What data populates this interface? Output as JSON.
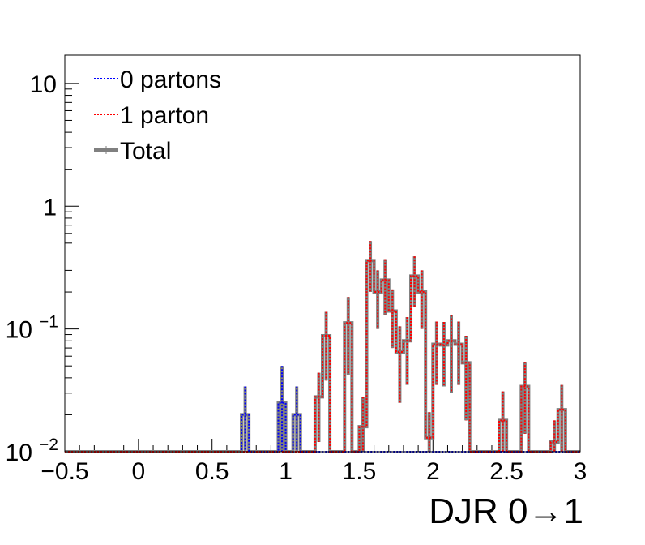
{
  "chart_data": {
    "type": "step-histogram",
    "xlabel": "DJR 0→1",
    "ylabel": "",
    "xlim": [
      -0.5,
      3.0
    ],
    "ylim": [
      0.01,
      17
    ],
    "yscale": "log",
    "bin_width": 0.05,
    "x_ticks": [
      {
        "value": -0.5,
        "label": "−0.5"
      },
      {
        "value": 0.0,
        "label": "0"
      },
      {
        "value": 0.5,
        "label": "0.5"
      },
      {
        "value": 1.0,
        "label": "1"
      },
      {
        "value": 1.5,
        "label": "1.5"
      },
      {
        "value": 2.0,
        "label": "2"
      },
      {
        "value": 2.5,
        "label": "2.5"
      },
      {
        "value": 3.0,
        "label": "3"
      }
    ],
    "y_ticks": [
      {
        "value": 0.01,
        "base": "10",
        "exp": "−2"
      },
      {
        "value": 0.1,
        "base": "10",
        "exp": "−1"
      },
      {
        "value": 1,
        "base": "1",
        "exp": ""
      },
      {
        "value": 10,
        "base": "10",
        "exp": ""
      }
    ],
    "legend": {
      "position": "top-left",
      "entries": [
        {
          "name": "0 partons",
          "color": "#0000ff",
          "style": "dotted"
        },
        {
          "name": "1 parton",
          "color": "#ff0000",
          "style": "dotted"
        },
        {
          "name": "Total",
          "color": "#808080",
          "style": "solid"
        }
      ]
    },
    "series": [
      {
        "name": "0 partons",
        "color": "#0000ff",
        "bins": [
          {
            "x": 0.725,
            "y": 0.02,
            "err": 0.014
          },
          {
            "x": 0.975,
            "y": 0.025,
            "err": 0.025
          },
          {
            "x": 1.075,
            "y": 0.02,
            "err": 0.014
          }
        ]
      },
      {
        "name": "1 parton",
        "color": "#ff0000",
        "bins": [
          {
            "x": 1.225,
            "y": 0.028,
            "err": 0.016
          },
          {
            "x": 1.275,
            "y": 0.088,
            "err": 0.05
          },
          {
            "x": 1.425,
            "y": 0.112,
            "err": 0.07
          },
          {
            "x": 1.525,
            "y": 0.016,
            "err": 0.012
          },
          {
            "x": 1.575,
            "y": 0.36,
            "err": 0.16
          },
          {
            "x": 1.625,
            "y": 0.2,
            "err": 0.1
          },
          {
            "x": 1.675,
            "y": 0.25,
            "err": 0.12
          },
          {
            "x": 1.725,
            "y": 0.14,
            "err": 0.07
          },
          {
            "x": 1.775,
            "y": 0.065,
            "err": 0.04
          },
          {
            "x": 1.825,
            "y": 0.08,
            "err": 0.045
          },
          {
            "x": 1.875,
            "y": 0.27,
            "err": 0.12
          },
          {
            "x": 1.925,
            "y": 0.2,
            "err": 0.1
          },
          {
            "x": 1.975,
            "y": 0.013,
            "err": 0.008
          },
          {
            "x": 2.025,
            "y": 0.075,
            "err": 0.04
          },
          {
            "x": 2.075,
            "y": 0.074,
            "err": 0.04
          },
          {
            "x": 2.125,
            "y": 0.08,
            "err": 0.05
          },
          {
            "x": 2.175,
            "y": 0.075,
            "err": 0.04
          },
          {
            "x": 2.225,
            "y": 0.053,
            "err": 0.035
          },
          {
            "x": 2.475,
            "y": 0.018,
            "err": 0.013
          },
          {
            "x": 2.625,
            "y": 0.034,
            "err": 0.02
          },
          {
            "x": 2.825,
            "y": 0.012,
            "err": 0.006
          },
          {
            "x": 2.875,
            "y": 0.022,
            "err": 0.013
          }
        ]
      }
    ]
  }
}
